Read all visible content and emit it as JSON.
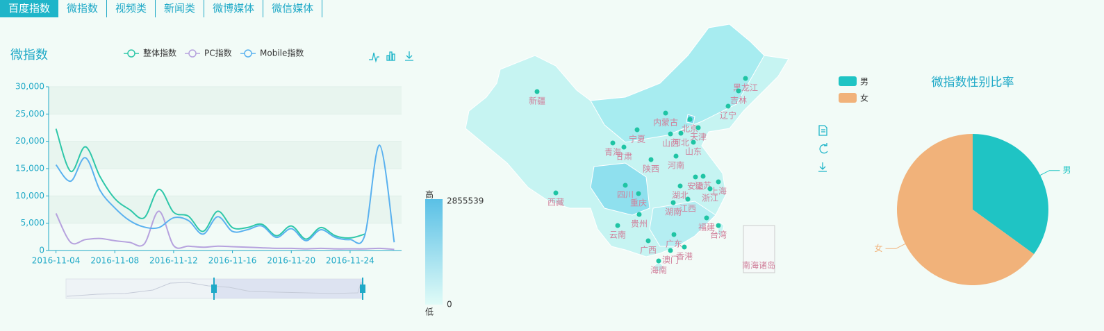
{
  "tabs": [
    "百度指数",
    "微指数",
    "视频类",
    "新闻类",
    "微博媒体",
    "微信媒体"
  ],
  "chart_data": [
    {
      "type": "line",
      "title": "微指数",
      "categories": [
        "2016-11-04",
        null,
        null,
        null,
        "2016-11-08",
        null,
        null,
        null,
        "2016-11-12",
        null,
        null,
        null,
        "2016-11-16",
        null,
        null,
        null,
        "2016-11-20",
        null,
        null,
        null,
        "2016-11-24",
        null,
        null,
        null
      ],
      "series": [
        {
          "name": "整体指数",
          "color": "#2ec7a9",
          "values": [
            22300,
            14500,
            19000,
            13500,
            9500,
            7500,
            6000,
            11200,
            7000,
            6300,
            3500,
            7200,
            4200,
            4200,
            4800,
            2700,
            4500,
            2100,
            4200,
            2700,
            2300,
            3000,
            null,
            null
          ]
        },
        {
          "name": "PC指数",
          "color": "#b6a2de",
          "values": [
            6800,
            1500,
            2000,
            2200,
            1800,
            1500,
            1200,
            7200,
            900,
            800,
            600,
            800,
            700,
            600,
            500,
            400,
            400,
            300,
            400,
            300,
            300,
            300,
            400,
            200
          ]
        },
        {
          "name": "Mobile指数",
          "color": "#5ab1ef",
          "values": [
            15700,
            12700,
            17000,
            11000,
            7800,
            5500,
            4300,
            4200,
            6000,
            5500,
            3000,
            6200,
            3500,
            3800,
            4500,
            2400,
            4000,
            1800,
            3800,
            2400,
            2000,
            2800,
            19300,
            1500
          ]
        }
      ],
      "ylim": [
        0,
        30000
      ],
      "yticks": [
        0,
        {
          "value": 5000,
          "label": "5,000"
        },
        {
          "value": 10000,
          "label": "10,000"
        },
        {
          "value": 15000,
          "label": "15,000"
        },
        {
          "value": 20000,
          "label": "20,000"
        },
        {
          "value": 25000,
          "label": "25,000"
        },
        {
          "value": 30000,
          "label": "30,000"
        }
      ],
      "grid": true
    },
    {
      "type": "map",
      "visual_map": {
        "high_label": "高",
        "low_label": "低",
        "max": 2855539,
        "min": 0
      },
      "provinces": [
        "新疆",
        "西藏",
        "青海",
        "甘肃",
        "宁夏",
        "内蒙古",
        "黑龙江",
        "吉林",
        "辽宁",
        "北京",
        "天津",
        "河北",
        "山西",
        "山东",
        "陕西",
        "河南",
        "四川",
        "重庆",
        "湖北",
        "安徽",
        "江苏",
        "上海",
        "浙江",
        "湖南",
        "江西",
        "贵州",
        "云南",
        "广西",
        "广东",
        "福建",
        "台湾",
        "香港",
        "澳门",
        "海南",
        "南海诸岛"
      ]
    },
    {
      "type": "pie",
      "title": "微指数性别比率",
      "categories": [
        "男",
        "女"
      ],
      "values": [
        35,
        65
      ],
      "colors": [
        "#1fc4c4",
        "#f1b27a"
      ]
    }
  ]
}
